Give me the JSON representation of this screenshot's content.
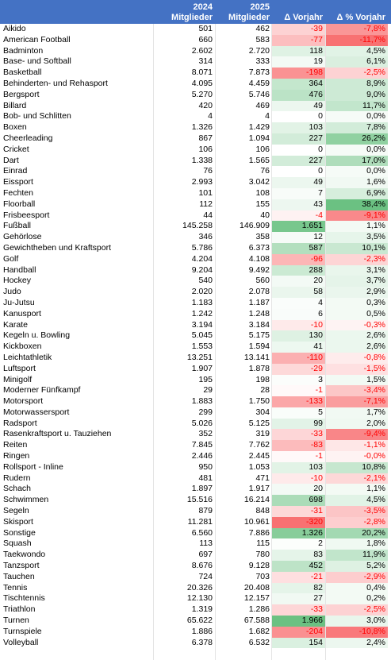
{
  "headers": {
    "y2024": "2024",
    "y2025": "2025",
    "m2024": "Mitglieder",
    "m2025": "Mitglieder",
    "delta": "Δ Vorjahr",
    "deltapct": "Δ % Vorjahr"
  },
  "colors": {
    "header_bg": "#4472c4",
    "positive": "#63be7b",
    "negative": "#f8696b",
    "neg_text": "#ff0000"
  },
  "rows": [
    {
      "name": "Aikido",
      "y2024": "501",
      "y2025": "462",
      "delta": "-39",
      "deltapct": "-7,8%",
      "d": -39,
      "p": -7.8
    },
    {
      "name": "American Football",
      "y2024": "660",
      "y2025": "583",
      "delta": "-77",
      "deltapct": "-11,7%",
      "d": -77,
      "p": -11.7
    },
    {
      "name": "Badminton",
      "y2024": "2.602",
      "y2025": "2.720",
      "delta": "118",
      "deltapct": "4,5%",
      "d": 118,
      "p": 4.5
    },
    {
      "name": "Base- und Softball",
      "y2024": "314",
      "y2025": "333",
      "delta": "19",
      "deltapct": "6,1%",
      "d": 19,
      "p": 6.1
    },
    {
      "name": "Basketball",
      "y2024": "8.071",
      "y2025": "7.873",
      "delta": "-198",
      "deltapct": "-2,5%",
      "d": -198,
      "p": -2.5
    },
    {
      "name": "Behinderten- und Rehasport",
      "y2024": "4.095",
      "y2025": "4.459",
      "delta": "364",
      "deltapct": "8,9%",
      "d": 364,
      "p": 8.9
    },
    {
      "name": "Bergsport",
      "y2024": "5.270",
      "y2025": "5.746",
      "delta": "476",
      "deltapct": "9,0%",
      "d": 476,
      "p": 9.0
    },
    {
      "name": "Billard",
      "y2024": "420",
      "y2025": "469",
      "delta": "49",
      "deltapct": "11,7%",
      "d": 49,
      "p": 11.7
    },
    {
      "name": "Bob- und Schlitten",
      "y2024": "4",
      "y2025": "4",
      "delta": "0",
      "deltapct": "0,0%",
      "d": 0,
      "p": 0
    },
    {
      "name": "Boxen",
      "y2024": "1.326",
      "y2025": "1.429",
      "delta": "103",
      "deltapct": "7,8%",
      "d": 103,
      "p": 7.8
    },
    {
      "name": "Cheerleading",
      "y2024": "867",
      "y2025": "1.094",
      "delta": "227",
      "deltapct": "26,2%",
      "d": 227,
      "p": 26.2
    },
    {
      "name": "Cricket",
      "y2024": "106",
      "y2025": "106",
      "delta": "0",
      "deltapct": "0,0%",
      "d": 0,
      "p": 0
    },
    {
      "name": "Dart",
      "y2024": "1.338",
      "y2025": "1.565",
      "delta": "227",
      "deltapct": "17,0%",
      "d": 227,
      "p": 17.0
    },
    {
      "name": "Einrad",
      "y2024": "76",
      "y2025": "76",
      "delta": "0",
      "deltapct": "0,0%",
      "d": 0,
      "p": 0
    },
    {
      "name": "Eissport",
      "y2024": "2.993",
      "y2025": "3.042",
      "delta": "49",
      "deltapct": "1,6%",
      "d": 49,
      "p": 1.6
    },
    {
      "name": "Fechten",
      "y2024": "101",
      "y2025": "108",
      "delta": "7",
      "deltapct": "6,9%",
      "d": 7,
      "p": 6.9
    },
    {
      "name": "Floorball",
      "y2024": "112",
      "y2025": "155",
      "delta": "43",
      "deltapct": "38,4%",
      "d": 43,
      "p": 38.4
    },
    {
      "name": "Frisbeesport",
      "y2024": "44",
      "y2025": "40",
      "delta": "-4",
      "deltapct": "-9,1%",
      "d": -4,
      "p": -9.1
    },
    {
      "name": "Fußball",
      "y2024": "145.258",
      "y2025": "146.909",
      "delta": "1.651",
      "deltapct": "1,1%",
      "d": 1651,
      "p": 1.1
    },
    {
      "name": "Gehörlose",
      "y2024": "346",
      "y2025": "358",
      "delta": "12",
      "deltapct": "3,5%",
      "d": 12,
      "p": 3.5
    },
    {
      "name": "Gewichtheben und Kraftsport",
      "y2024": "5.786",
      "y2025": "6.373",
      "delta": "587",
      "deltapct": "10,1%",
      "d": 587,
      "p": 10.1
    },
    {
      "name": "Golf",
      "y2024": "4.204",
      "y2025": "4.108",
      "delta": "-96",
      "deltapct": "-2,3%",
      "d": -96,
      "p": -2.3
    },
    {
      "name": "Handball",
      "y2024": "9.204",
      "y2025": "9.492",
      "delta": "288",
      "deltapct": "3,1%",
      "d": 288,
      "p": 3.1
    },
    {
      "name": "Hockey",
      "y2024": "540",
      "y2025": "560",
      "delta": "20",
      "deltapct": "3,7%",
      "d": 20,
      "p": 3.7
    },
    {
      "name": "Judo",
      "y2024": "2.020",
      "y2025": "2.078",
      "delta": "58",
      "deltapct": "2,9%",
      "d": 58,
      "p": 2.9
    },
    {
      "name": "Ju-Jutsu",
      "y2024": "1.183",
      "y2025": "1.187",
      "delta": "4",
      "deltapct": "0,3%",
      "d": 4,
      "p": 0.3
    },
    {
      "name": "Kanusport",
      "y2024": "1.242",
      "y2025": "1.248",
      "delta": "6",
      "deltapct": "0,5%",
      "d": 6,
      "p": 0.5
    },
    {
      "name": "Karate",
      "y2024": "3.194",
      "y2025": "3.184",
      "delta": "-10",
      "deltapct": "-0,3%",
      "d": -10,
      "p": -0.3
    },
    {
      "name": "Kegeln u. Bowling",
      "y2024": "5.045",
      "y2025": "5.175",
      "delta": "130",
      "deltapct": "2,6%",
      "d": 130,
      "p": 2.6
    },
    {
      "name": "Kickboxen",
      "y2024": "1.553",
      "y2025": "1.594",
      "delta": "41",
      "deltapct": "2,6%",
      "d": 41,
      "p": 2.6
    },
    {
      "name": "Leichtathletik",
      "y2024": "13.251",
      "y2025": "13.141",
      "delta": "-110",
      "deltapct": "-0,8%",
      "d": -110,
      "p": -0.8
    },
    {
      "name": "Luftsport",
      "y2024": "1.907",
      "y2025": "1.878",
      "delta": "-29",
      "deltapct": "-1,5%",
      "d": -29,
      "p": -1.5
    },
    {
      "name": "Minigolf",
      "y2024": "195",
      "y2025": "198",
      "delta": "3",
      "deltapct": "1,5%",
      "d": 3,
      "p": 1.5
    },
    {
      "name": "Moderner Fünfkampf",
      "y2024": "29",
      "y2025": "28",
      "delta": "-1",
      "deltapct": "-3,4%",
      "d": -1,
      "p": -3.4
    },
    {
      "name": "Motorsport",
      "y2024": "1.883",
      "y2025": "1.750",
      "delta": "-133",
      "deltapct": "-7,1%",
      "d": -133,
      "p": -7.1
    },
    {
      "name": "Motorwassersport",
      "y2024": "299",
      "y2025": "304",
      "delta": "5",
      "deltapct": "1,7%",
      "d": 5,
      "p": 1.7
    },
    {
      "name": "Radsport",
      "y2024": "5.026",
      "y2025": "5.125",
      "delta": "99",
      "deltapct": "2,0%",
      "d": 99,
      "p": 2.0
    },
    {
      "name": "Rasenkraftsport u. Tauziehen",
      "y2024": "352",
      "y2025": "319",
      "delta": "-33",
      "deltapct": "-9,4%",
      "d": -33,
      "p": -9.4
    },
    {
      "name": "Reiten",
      "y2024": "7.845",
      "y2025": "7.762",
      "delta": "-83",
      "deltapct": "-1,1%",
      "d": -83,
      "p": -1.1
    },
    {
      "name": "Ringen",
      "y2024": "2.446",
      "y2025": "2.445",
      "delta": "-1",
      "deltapct": "-0,0%",
      "d": -1,
      "p": -0.04
    },
    {
      "name": "Rollsport - Inline",
      "y2024": "950",
      "y2025": "1.053",
      "delta": "103",
      "deltapct": "10,8%",
      "d": 103,
      "p": 10.8
    },
    {
      "name": "Rudern",
      "y2024": "481",
      "y2025": "471",
      "delta": "-10",
      "deltapct": "-2,1%",
      "d": -10,
      "p": -2.1
    },
    {
      "name": "Schach",
      "y2024": "1.897",
      "y2025": "1.917",
      "delta": "20",
      "deltapct": "1,1%",
      "d": 20,
      "p": 1.1
    },
    {
      "name": "Schwimmen",
      "y2024": "15.516",
      "y2025": "16.214",
      "delta": "698",
      "deltapct": "4,5%",
      "d": 698,
      "p": 4.5
    },
    {
      "name": "Segeln",
      "y2024": "879",
      "y2025": "848",
      "delta": "-31",
      "deltapct": "-3,5%",
      "d": -31,
      "p": -3.5
    },
    {
      "name": "Skisport",
      "y2024": "11.281",
      "y2025": "10.961",
      "delta": "-320",
      "deltapct": "-2,8%",
      "d": -320,
      "p": -2.8
    },
    {
      "name": "Sonstige",
      "y2024": "6.560",
      "y2025": "7.886",
      "delta": "1.326",
      "deltapct": "20,2%",
      "d": 1326,
      "p": 20.2
    },
    {
      "name": "Squash",
      "y2024": "113",
      "y2025": "115",
      "delta": "2",
      "deltapct": "1,8%",
      "d": 2,
      "p": 1.8
    },
    {
      "name": "Taekwondo",
      "y2024": "697",
      "y2025": "780",
      "delta": "83",
      "deltapct": "11,9%",
      "d": 83,
      "p": 11.9
    },
    {
      "name": "Tanzsport",
      "y2024": "8.676",
      "y2025": "9.128",
      "delta": "452",
      "deltapct": "5,2%",
      "d": 452,
      "p": 5.2
    },
    {
      "name": "Tauchen",
      "y2024": "724",
      "y2025": "703",
      "delta": "-21",
      "deltapct": "-2,9%",
      "d": -21,
      "p": -2.9
    },
    {
      "name": "Tennis",
      "y2024": "20.326",
      "y2025": "20.408",
      "delta": "82",
      "deltapct": "0,4%",
      "d": 82,
      "p": 0.4
    },
    {
      "name": "Tischtennis",
      "y2024": "12.130",
      "y2025": "12.157",
      "delta": "27",
      "deltapct": "0,2%",
      "d": 27,
      "p": 0.2
    },
    {
      "name": "Triathlon",
      "y2024": "1.319",
      "y2025": "1.286",
      "delta": "-33",
      "deltapct": "-2,5%",
      "d": -33,
      "p": -2.5
    },
    {
      "name": "Turnen",
      "y2024": "65.622",
      "y2025": "67.588",
      "delta": "1.966",
      "deltapct": "3,0%",
      "d": 1966,
      "p": 3.0
    },
    {
      "name": "Turnspiele",
      "y2024": "1.886",
      "y2025": "1.682",
      "delta": "-204",
      "deltapct": "-10,8%",
      "d": -204,
      "p": -10.8
    },
    {
      "name": "Volleyball",
      "y2024": "6.378",
      "y2025": "6.532",
      "delta": "154",
      "deltapct": "2,4%",
      "d": 154,
      "p": 2.4
    }
  ]
}
